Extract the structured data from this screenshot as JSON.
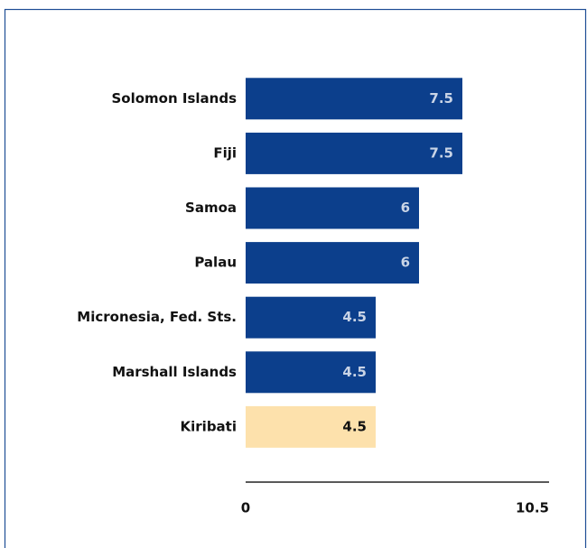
{
  "chart_data": {
    "type": "bar",
    "orientation": "horizontal",
    "categories": [
      "Solomon Islands",
      "Fiji",
      "Samoa",
      "Palau",
      "Micronesia, Fed. Sts.",
      "Marshall Islands",
      "Kiribati"
    ],
    "values": [
      7.5,
      7.5,
      6,
      6,
      4.5,
      4.5,
      4.5
    ],
    "colors": [
      "#0c3f8c",
      "#0c3f8c",
      "#0c3f8c",
      "#0c3f8c",
      "#0c3f8c",
      "#0c3f8c",
      "#fde1ac"
    ],
    "xlim": [
      0,
      10.5
    ],
    "xticks": [
      0,
      10.5
    ],
    "grid": false
  }
}
